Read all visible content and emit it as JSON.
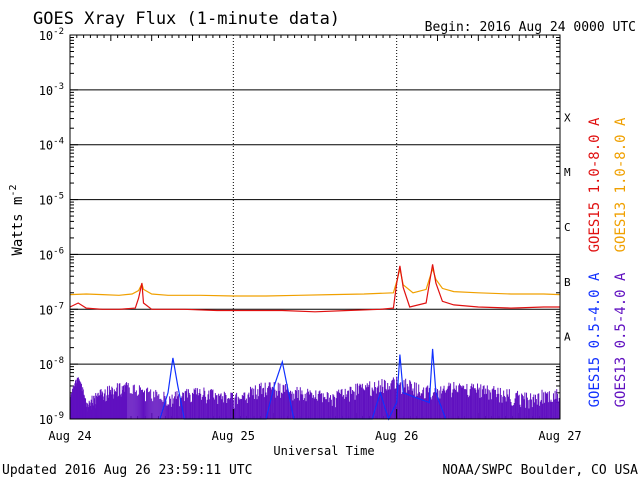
{
  "chart_data": {
    "type": "line",
    "title": "GOES Xray Flux (1-minute data)",
    "begin_text": "Begin:  2016 Aug 24 0000 UTC",
    "ylabel": "Watts m",
    "ylabel_exponent": "-2",
    "xlabel": "Universal Time",
    "updated_text": "Updated 2016 Aug 26 23:59:11 UTC",
    "source_text": "NOAA/SWPC Boulder, CO USA",
    "y_scale": "log",
    "ylim": [
      1e-09,
      0.01
    ],
    "y_ticks": [
      {
        "value": 1e-09,
        "base": "10",
        "exp": "-9"
      },
      {
        "value": 1e-08,
        "base": "10",
        "exp": "-8"
      },
      {
        "value": 1e-07,
        "base": "10",
        "exp": "-7"
      },
      {
        "value": 1e-06,
        "base": "10",
        "exp": "-6"
      },
      {
        "value": 1e-05,
        "base": "10",
        "exp": "-5"
      },
      {
        "value": 0.0001,
        "base": "10",
        "exp": "-4"
      },
      {
        "value": 0.001,
        "base": "10",
        "exp": "-3"
      },
      {
        "value": 0.01,
        "base": "10",
        "exp": "-2"
      }
    ],
    "x_unit": "days since 2016 Aug 24 0000 UTC",
    "xlim": [
      0,
      3
    ],
    "x_ticks": [
      {
        "value": 0,
        "label": "Aug 24"
      },
      {
        "value": 1,
        "label": "Aug 25"
      },
      {
        "value": 2,
        "label": "Aug 26"
      },
      {
        "value": 3,
        "label": "Aug 27"
      }
    ],
    "flare_classes": [
      {
        "label": "A",
        "value": 3.16e-08
      },
      {
        "label": "B",
        "value": 3.16e-07
      },
      {
        "label": "C",
        "value": 3.16e-06
      },
      {
        "label": "M",
        "value": 3.16e-05
      },
      {
        "label": "X",
        "value": 0.000316
      }
    ],
    "right_legend": [
      {
        "label": "GOES15 1.0-8.0 A",
        "color": "#e01010"
      },
      {
        "label": "GOES13 1.0-8.0 A",
        "color": "#f0a000"
      },
      {
        "label": "GOES15 0.5-4.0 A",
        "color": "#1030ff"
      },
      {
        "label": "GOES13 0.5-4.0 A",
        "color": "#6010c0"
      }
    ],
    "series": [
      {
        "name": "GOES13 1.0-8.0 A",
        "color": "#f0a000",
        "points": [
          [
            0.0,
            1.85e-07
          ],
          [
            0.1,
            1.9e-07
          ],
          [
            0.2,
            1.85e-07
          ],
          [
            0.3,
            1.8e-07
          ],
          [
            0.38,
            1.9e-07
          ],
          [
            0.42,
            2.2e-07
          ],
          [
            0.44,
            2.9e-07
          ],
          [
            0.45,
            2.3e-07
          ],
          [
            0.5,
            1.9e-07
          ],
          [
            0.6,
            1.8e-07
          ],
          [
            0.8,
            1.8e-07
          ],
          [
            1.0,
            1.75e-07
          ],
          [
            1.2,
            1.75e-07
          ],
          [
            1.4,
            1.8e-07
          ],
          [
            1.6,
            1.85e-07
          ],
          [
            1.8,
            1.9e-07
          ],
          [
            1.98,
            2e-07
          ],
          [
            2.0,
            3.2e-07
          ],
          [
            2.02,
            5.5e-07
          ],
          [
            2.04,
            2.8e-07
          ],
          [
            2.1,
            2e-07
          ],
          [
            2.18,
            2.3e-07
          ],
          [
            2.22,
            5.5e-07
          ],
          [
            2.24,
            3.5e-07
          ],
          [
            2.28,
            2.4e-07
          ],
          [
            2.35,
            2.1e-07
          ],
          [
            2.5,
            2e-07
          ],
          [
            2.7,
            1.9e-07
          ],
          [
            2.9,
            1.9e-07
          ],
          [
            3.0,
            1.85e-07
          ]
        ]
      },
      {
        "name": "GOES15 1.0-8.0 A",
        "color": "#e01010",
        "points": [
          [
            0.0,
            1.1e-07
          ],
          [
            0.05,
            1.3e-07
          ],
          [
            0.1,
            1.05e-07
          ],
          [
            0.2,
            1e-07
          ],
          [
            0.3,
            1e-07
          ],
          [
            0.4,
            1.05e-07
          ],
          [
            0.42,
            1.6e-07
          ],
          [
            0.44,
            3e-07
          ],
          [
            0.45,
            1.3e-07
          ],
          [
            0.5,
            1e-07
          ],
          [
            0.7,
            1e-07
          ],
          [
            0.9,
            9.5e-08
          ],
          [
            1.1,
            9.5e-08
          ],
          [
            1.3,
            9.5e-08
          ],
          [
            1.5,
            9e-08
          ],
          [
            1.7,
            9.5e-08
          ],
          [
            1.9,
            1e-07
          ],
          [
            1.98,
            1.05e-07
          ],
          [
            2.0,
            3e-07
          ],
          [
            2.02,
            6.2e-07
          ],
          [
            2.04,
            2.5e-07
          ],
          [
            2.08,
            1.1e-07
          ],
          [
            2.18,
            1.3e-07
          ],
          [
            2.22,
            6.6e-07
          ],
          [
            2.24,
            3e-07
          ],
          [
            2.28,
            1.4e-07
          ],
          [
            2.35,
            1.2e-07
          ],
          [
            2.5,
            1.1e-07
          ],
          [
            2.7,
            1.05e-07
          ],
          [
            2.9,
            1.1e-07
          ],
          [
            3.0,
            1.1e-07
          ]
        ]
      },
      {
        "name": "GOES13 0.5-4.0 A",
        "color": "#6010c0",
        "style": "noisy floor",
        "points": [
          [
            0.0,
            3e-09
          ],
          [
            0.05,
            6e-09
          ],
          [
            0.1,
            2e-09
          ],
          [
            0.2,
            4e-09
          ],
          [
            0.35,
            5e-09
          ],
          [
            0.6,
            3e-09
          ],
          [
            0.8,
            4e-09
          ],
          [
            1.0,
            3e-09
          ],
          [
            1.2,
            5e-09
          ],
          [
            1.4,
            4e-09
          ],
          [
            1.6,
            3e-09
          ],
          [
            1.8,
            5e-09
          ],
          [
            2.0,
            6e-09
          ],
          [
            2.2,
            4e-09
          ],
          [
            2.4,
            5e-09
          ],
          [
            2.6,
            4e-09
          ],
          [
            2.8,
            3e-09
          ],
          [
            3.0,
            4e-09
          ]
        ]
      },
      {
        "name": "GOES15 0.5-4.0 A",
        "color": "#1030ff",
        "points": [
          [
            0.55,
            1e-09
          ],
          [
            0.6,
            3e-09
          ],
          [
            0.63,
            1.3e-08
          ],
          [
            0.66,
            4e-09
          ],
          [
            0.7,
            1e-09
          ],
          [
            1.2,
            1e-09
          ],
          [
            1.25,
            4e-09
          ],
          [
            1.3,
            1.1e-08
          ],
          [
            1.33,
            4e-09
          ],
          [
            1.37,
            1e-09
          ],
          [
            1.85,
            1e-09
          ],
          [
            1.9,
            3e-09
          ],
          [
            1.95,
            1e-09
          ],
          [
            2.0,
            2e-09
          ],
          [
            2.02,
            1.5e-08
          ],
          [
            2.04,
            3e-09
          ],
          [
            2.2,
            2e-09
          ],
          [
            2.22,
            1.9e-08
          ],
          [
            2.24,
            3e-09
          ],
          [
            2.3,
            1e-09
          ]
        ]
      }
    ],
    "grid": true
  }
}
